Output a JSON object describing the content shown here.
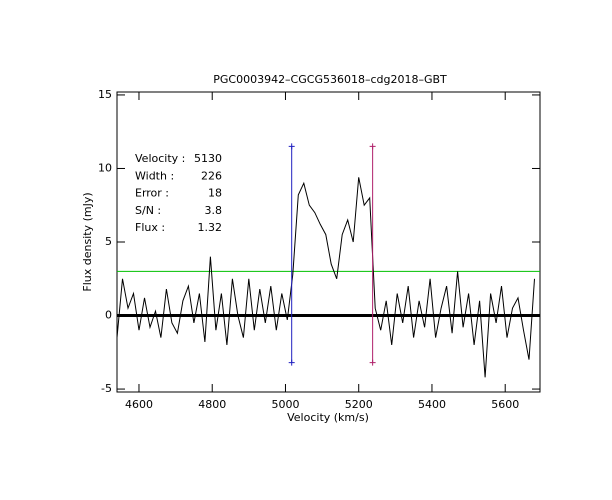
{
  "chart_data": {
    "type": "line",
    "title": "PGC0003942–CGCG536018–cdg2018–GBT",
    "x_label": "Velocity (km/s)",
    "y_label": "Flux density (mJy)",
    "color": "#000000",
    "x": [
      4540,
      4555,
      4570,
      4585,
      4600,
      4615,
      4630,
      4645,
      4660,
      4675,
      4690,
      4705,
      4720,
      4735,
      4750,
      4765,
      4780,
      4795,
      4810,
      4825,
      4840,
      4855,
      4870,
      4885,
      4900,
      4915,
      4930,
      4945,
      4960,
      4975,
      4990,
      5005,
      5020,
      5035,
      5050,
      5065,
      5080,
      5095,
      5110,
      5125,
      5140,
      5155,
      5170,
      5185,
      5200,
      5215,
      5230,
      5245,
      5260,
      5275,
      5290,
      5305,
      5320,
      5335,
      5350,
      5365,
      5380,
      5395,
      5410,
      5425,
      5440,
      5455,
      5470,
      5485,
      5500,
      5515,
      5530,
      5545,
      5560,
      5575,
      5590,
      5605,
      5620,
      5635,
      5650,
      5665,
      5680
    ],
    "values": [
      -1.5,
      2.5,
      0.5,
      1.5,
      -1.0,
      1.2,
      -0.8,
      0.3,
      -1.5,
      1.8,
      -0.5,
      -1.2,
      1.0,
      2.0,
      -0.5,
      1.5,
      -1.8,
      4.0,
      -1.0,
      1.5,
      -2.0,
      2.5,
      0.0,
      -1.5,
      2.5,
      -1.0,
      1.8,
      -0.5,
      2.0,
      -1.0,
      1.5,
      -0.3,
      2.8,
      8.2,
      9.0,
      7.5,
      7.0,
      6.2,
      5.5,
      3.5,
      2.5,
      5.5,
      6.5,
      5.0,
      9.4,
      7.5,
      8.0,
      0.5,
      -1.0,
      1.0,
      -2.0,
      1.5,
      -0.5,
      2.0,
      -1.5,
      1.0,
      -0.8,
      2.5,
      -1.5,
      0.5,
      2.0,
      -1.2,
      3.0,
      -0.8,
      1.5,
      -2.0,
      1.0,
      -4.2,
      1.5,
      -0.5,
      2.0,
      -1.5,
      0.5,
      1.2,
      -1.0,
      -3.0,
      2.5
    ],
    "xlim": [
      4540,
      5695
    ],
    "ylim": [
      -5.2,
      15.2
    ],
    "xticks": [
      4600,
      4800,
      5000,
      5200,
      5400,
      5600
    ],
    "yticks": [
      -5,
      0,
      5,
      10,
      15
    ],
    "reference_lines": [
      {
        "y": 0,
        "color": "#000000"
      },
      {
        "y": 3.0,
        "color": "#00c000"
      }
    ],
    "markers": [
      {
        "x": 5017,
        "ymin": -3.2,
        "ymax": 11.5,
        "color": "#2020c0"
      },
      {
        "x": 5238,
        "ymin": -3.2,
        "ymax": 11.5,
        "color": "#b0206a"
      }
    ],
    "stats_color": "#2a2ab8",
    "stats": [
      {
        "label": "Velocity :",
        "value": 5130
      },
      {
        "label": "Width :",
        "value": 226
      },
      {
        "label": "Error :",
        "value": 18
      },
      {
        "label": "S/N :",
        "value": 3.8
      },
      {
        "label": "Flux :",
        "value": 1.32
      }
    ]
  }
}
